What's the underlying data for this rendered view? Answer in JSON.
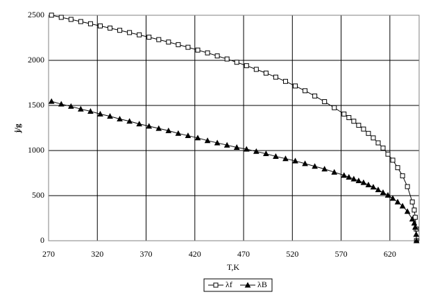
{
  "chart_data": {
    "type": "line",
    "x_label": "T,K",
    "y_label": "j/g",
    "x": [
      273,
      283,
      293,
      303,
      313,
      323,
      333,
      343,
      353,
      363,
      373,
      383,
      393,
      403,
      413,
      423,
      433,
      443,
      453,
      463,
      473,
      483,
      493,
      503,
      513,
      523,
      533,
      543,
      553,
      563,
      573,
      578,
      583,
      588,
      593,
      598,
      603,
      608,
      613,
      618,
      623,
      628,
      633,
      638,
      643,
      645,
      646,
      647,
      647.3
    ],
    "series": [
      {
        "name": "λf",
        "color": "#000000",
        "marker": "square",
        "values": [
          2501,
          2477,
          2454,
          2430,
          2406,
          2382,
          2358,
          2333,
          2308,
          2283,
          2257,
          2230,
          2203,
          2174,
          2145,
          2114,
          2083,
          2049,
          2015,
          1979,
          1941,
          1900,
          1859,
          1814,
          1767,
          1716,
          1663,
          1605,
          1542,
          1475,
          1405,
          1365,
          1325,
          1280,
          1238,
          1190,
          1140,
          1085,
          1028,
          960,
          893,
          810,
          720,
          600,
          430,
          340,
          260,
          130,
          0
        ]
      },
      {
        "name": "λB",
        "color": "#000000",
        "marker": "triangle",
        "values": [
          1545,
          1515,
          1490,
          1460,
          1435,
          1405,
          1380,
          1350,
          1325,
          1295,
          1270,
          1245,
          1220,
          1190,
          1165,
          1140,
          1110,
          1085,
          1060,
          1035,
          1015,
          990,
          965,
          935,
          910,
          885,
          855,
          825,
          795,
          760,
          725,
          705,
          685,
          665,
          645,
          620,
          595,
          565,
          535,
          505,
          470,
          430,
          385,
          325,
          240,
          195,
          150,
          70,
          0
        ]
      }
    ],
    "xlim": [
      270,
      650
    ],
    "xticks": [
      270,
      320,
      370,
      420,
      470,
      520,
      570,
      620
    ],
    "ylim": [
      0,
      2500
    ],
    "yticks": [
      0,
      500,
      1000,
      1500,
      2000,
      2500
    ],
    "grid": true,
    "legend": "bottom"
  }
}
